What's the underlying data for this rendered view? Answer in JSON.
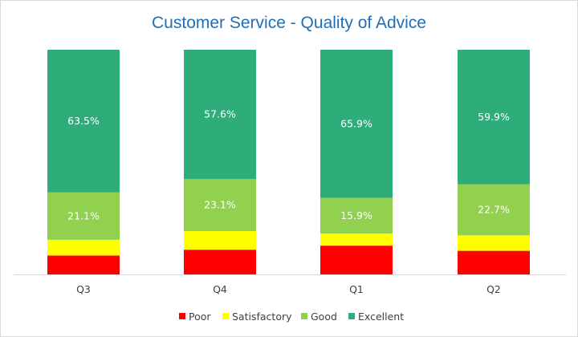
{
  "chart_data": {
    "type": "bar",
    "stacked": true,
    "normalized": true,
    "title": "Customer Service - Quality of Advice",
    "xlabel": "",
    "ylabel": "",
    "ylim": [
      0,
      100
    ],
    "grid": false,
    "legend_position": "bottom",
    "categories": [
      "Q3",
      "Q4",
      "Q1",
      "Q2"
    ],
    "series": [
      {
        "name": "Poor",
        "color": "#ff0000",
        "values": [
          8.4,
          11.0,
          12.8,
          10.5
        ],
        "labels": [
          "",
          "",
          "",
          ""
        ]
      },
      {
        "name": "Satisfactory",
        "color": "#ffff00",
        "values": [
          7.0,
          8.3,
          5.4,
          6.9
        ],
        "labels": [
          "",
          "",
          "",
          ""
        ]
      },
      {
        "name": "Good",
        "color": "#92d050",
        "values": [
          21.1,
          23.1,
          15.9,
          22.7
        ],
        "labels": [
          "21.1%",
          "23.1%",
          "15.9%",
          "22.7%"
        ]
      },
      {
        "name": "Excellent",
        "color": "#2eac7a",
        "values": [
          63.5,
          57.6,
          65.9,
          59.9
        ],
        "labels": [
          "63.5%",
          "57.6%",
          "65.9%",
          "59.9%"
        ]
      }
    ]
  }
}
